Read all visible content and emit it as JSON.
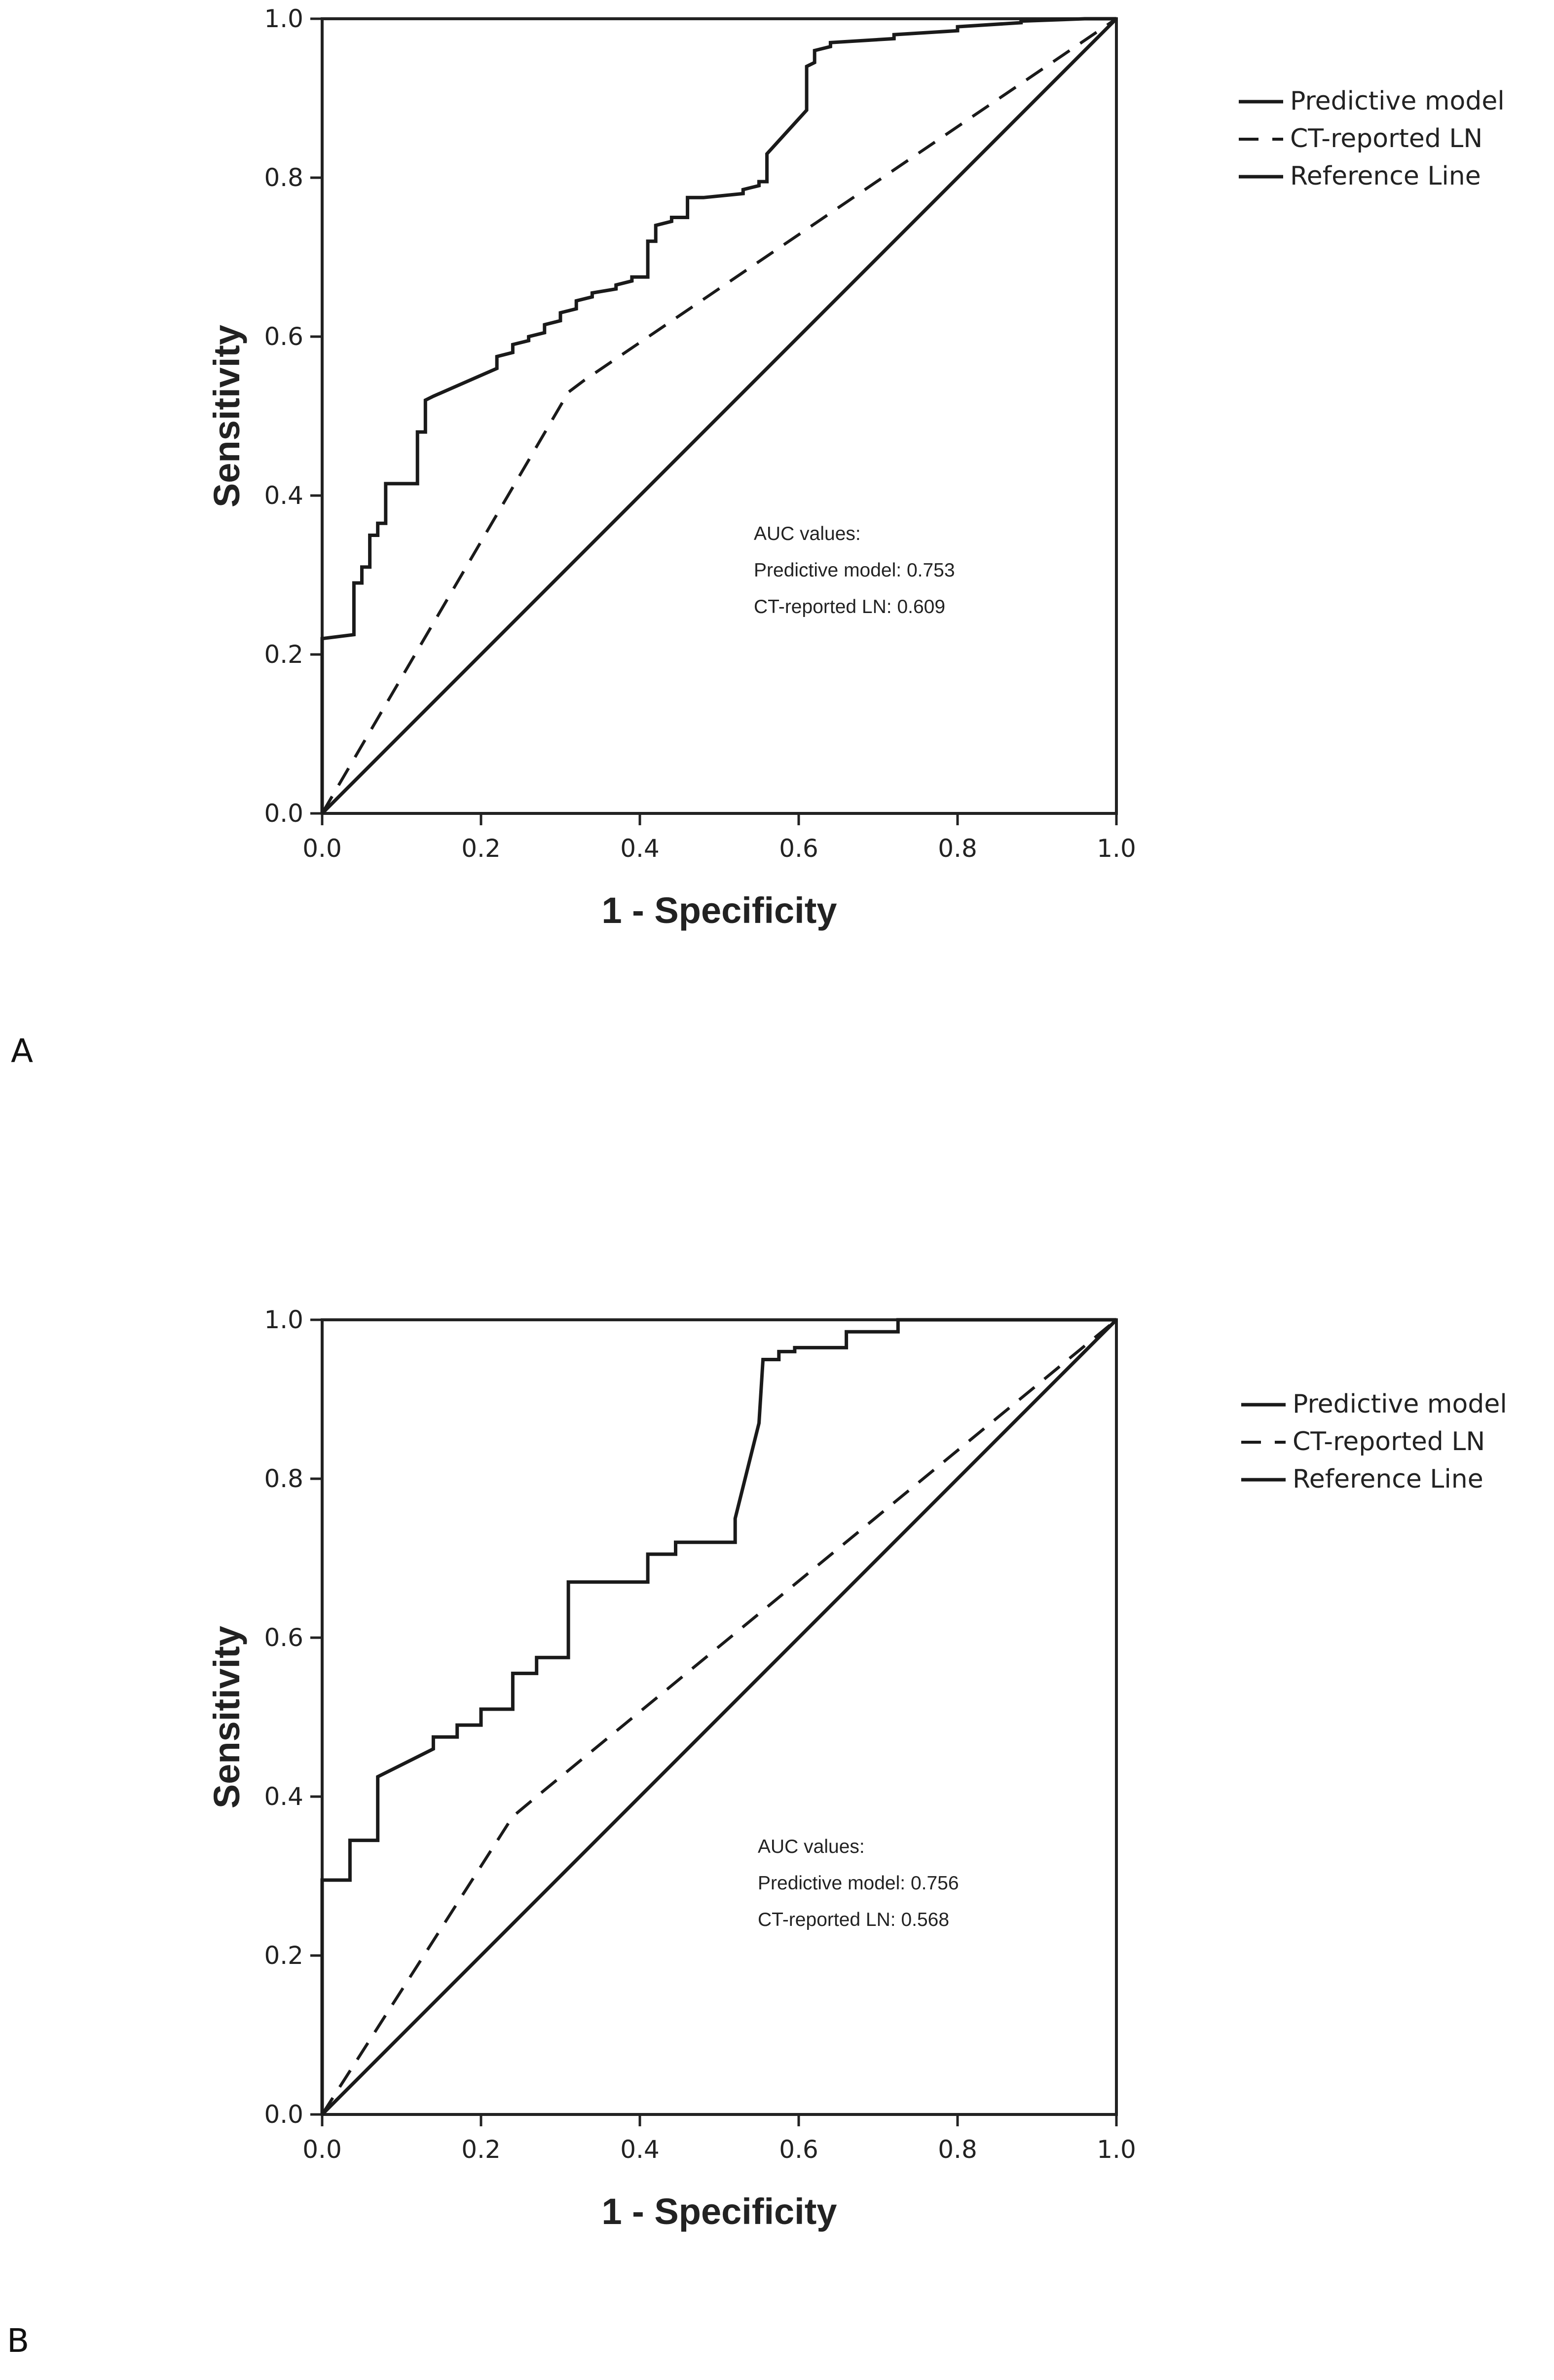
{
  "chart_data": [
    {
      "type": "line",
      "panel_label": "A",
      "xlabel": "1 - Specificity",
      "ylabel": "Sensitivity",
      "xlim": [
        0,
        1
      ],
      "ylim": [
        0,
        1
      ],
      "x_ticks": [
        "0.0",
        "0.2",
        "0.4",
        "0.6",
        "0.8",
        "1.0"
      ],
      "y_ticks": [
        "0.0",
        "0.2",
        "0.4",
        "0.6",
        "0.8",
        "1.0"
      ],
      "grid": false,
      "legend_position": "right, outside plot area",
      "legend": [
        "Predictive model",
        "CT-reported LN",
        "Reference Line"
      ],
      "annotation": [
        "AUC values:",
        "Predictive model: 0.753",
        "CT-reported LN: 0.609"
      ],
      "series": [
        {
          "name": "Predictive model",
          "style": "solid",
          "x": [
            0,
            0,
            0.04,
            0.04,
            0.05,
            0.05,
            0.06,
            0.06,
            0.07,
            0.07,
            0.08,
            0.08,
            0.09,
            0.09,
            0.12,
            0.12,
            0.13,
            0.13,
            0.14,
            0.22,
            0.22,
            0.24,
            0.24,
            0.26,
            0.26,
            0.28,
            0.28,
            0.3,
            0.3,
            0.32,
            0.32,
            0.34,
            0.34,
            0.37,
            0.37,
            0.39,
            0.39,
            0.41,
            0.41,
            0.42,
            0.42,
            0.44,
            0.44,
            0.46,
            0.46,
            0.48,
            0.48,
            0.53,
            0.53,
            0.55,
            0.55,
            0.56,
            0.56,
            0.61,
            0.61,
            0.62,
            0.62,
            0.64,
            0.64,
            0.72,
            0.72,
            0.8,
            0.8,
            0.88,
            0.88,
            0.96,
            1.0
          ],
          "y": [
            0,
            0.22,
            0.225,
            0.29,
            0.29,
            0.31,
            0.31,
            0.35,
            0.35,
            0.365,
            0.365,
            0.415,
            0.415,
            0.415,
            0.415,
            0.48,
            0.48,
            0.52,
            0.525,
            0.56,
            0.575,
            0.58,
            0.59,
            0.595,
            0.6,
            0.605,
            0.615,
            0.62,
            0.63,
            0.635,
            0.645,
            0.65,
            0.655,
            0.66,
            0.665,
            0.67,
            0.675,
            0.675,
            0.72,
            0.72,
            0.74,
            0.745,
            0.75,
            0.75,
            0.775,
            0.775,
            0.775,
            0.78,
            0.785,
            0.79,
            0.795,
            0.795,
            0.83,
            0.885,
            0.94,
            0.945,
            0.96,
            0.965,
            0.97,
            0.975,
            0.98,
            0.985,
            0.99,
            0.995,
            0.997,
            1.0,
            1.0
          ]
        },
        {
          "name": "CT-reported LN",
          "style": "dashed",
          "x": [
            0,
            0.31,
            0.33,
            1.0
          ],
          "y": [
            0,
            0.53,
            0.545,
            1.0
          ]
        },
        {
          "name": "Reference Line",
          "style": "solid",
          "x": [
            0,
            1
          ],
          "y": [
            0,
            1
          ]
        }
      ]
    },
    {
      "type": "line",
      "panel_label": "B",
      "xlabel": "1 - Specificity",
      "ylabel": "Sensitivity",
      "xlim": [
        0,
        1
      ],
      "ylim": [
        0,
        1
      ],
      "x_ticks": [
        "0.0",
        "0.2",
        "0.4",
        "0.6",
        "0.8",
        "1.0"
      ],
      "y_ticks": [
        "0.0",
        "0.2",
        "0.4",
        "0.6",
        "0.8",
        "1.0"
      ],
      "grid": false,
      "legend_position": "right, outside plot area",
      "legend": [
        "Predictive model",
        "CT-reported LN",
        "Reference Line"
      ],
      "annotation": [
        "AUC values:",
        "Predictive model: 0.756",
        "CT-reported LN: 0.568"
      ],
      "series": [
        {
          "name": "Predictive model",
          "style": "solid",
          "x": [
            0,
            0,
            0.035,
            0.035,
            0.07,
            0.07,
            0.14,
            0.14,
            0.17,
            0.17,
            0.2,
            0.2,
            0.24,
            0.24,
            0.27,
            0.27,
            0.31,
            0.31,
            0.41,
            0.41,
            0.445,
            0.445,
            0.52,
            0.52,
            0.55,
            0.555,
            0.575,
            0.575,
            0.595,
            0.595,
            0.66,
            0.66,
            0.725,
            0.725,
            1.0
          ],
          "y": [
            0,
            0.295,
            0.295,
            0.345,
            0.345,
            0.425,
            0.46,
            0.475,
            0.475,
            0.49,
            0.49,
            0.51,
            0.51,
            0.555,
            0.555,
            0.575,
            0.575,
            0.67,
            0.67,
            0.705,
            0.705,
            0.72,
            0.72,
            0.75,
            0.87,
            0.95,
            0.95,
            0.96,
            0.96,
            0.965,
            0.965,
            0.985,
            0.985,
            1.0,
            1.0
          ]
        },
        {
          "name": "CT-reported LN",
          "style": "dashed",
          "x": [
            0,
            0.24,
            0.27,
            1.0
          ],
          "y": [
            0,
            0.375,
            0.4,
            1.0
          ]
        },
        {
          "name": "Reference Line",
          "style": "solid",
          "x": [
            0,
            1
          ],
          "y": [
            0,
            1
          ]
        }
      ]
    }
  ]
}
